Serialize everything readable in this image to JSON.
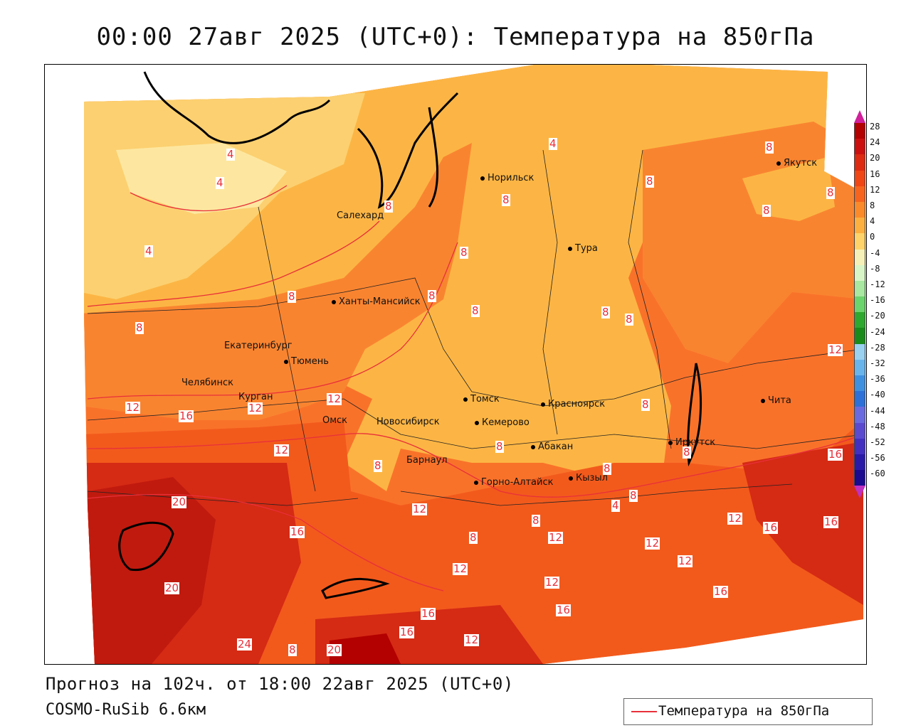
{
  "title": "00:00 27авг 2025 (UTC+0): Температура на 850гПа",
  "footer": {
    "forecast": "Прогноз на 102ч. от 18:00 22авг 2025 (UTC+0)",
    "model": "COSMO-RuSib 6.6км"
  },
  "legend": {
    "label": "Температура на 850гПа",
    "color": "#e8303a"
  },
  "colorbar": {
    "labels": [
      "28",
      "24",
      "20",
      "16",
      "12",
      "8",
      "4",
      "0",
      "-4",
      "-8",
      "-12",
      "-16",
      "-20",
      "-24",
      "-28",
      "-32",
      "-36",
      "-40",
      "-44",
      "-48",
      "-52",
      "-56",
      "-60"
    ],
    "colors": [
      "#b30000",
      "#cc1010",
      "#dd2a10",
      "#f04515",
      "#f7641e",
      "#fb8a2a",
      "#fcb040",
      "#fdd36a",
      "#f5f0b8",
      "#d8f5c8",
      "#a8e8a0",
      "#6cd46c",
      "#2ea82e",
      "#1a8a1a",
      "#9ad0f0",
      "#6ab4ec",
      "#4090e0",
      "#2c70d8",
      "#6a6ae0",
      "#5a4ad0",
      "#4230c0",
      "#2a1aa8",
      "#1a0a90"
    ]
  },
  "cities": [
    {
      "name": "Норильск"
    },
    {
      "name": "Якутск"
    },
    {
      "name": "Салехард"
    },
    {
      "name": "Тура"
    },
    {
      "name": "Ханты-Мансийск"
    },
    {
      "name": "Екатеринбург"
    },
    {
      "name": "Тюмень"
    },
    {
      "name": "Челябинск"
    },
    {
      "name": "Курган"
    },
    {
      "name": "Омск"
    },
    {
      "name": "Новосибирск"
    },
    {
      "name": "Томск"
    },
    {
      "name": "Кемерово"
    },
    {
      "name": "Красноярск"
    },
    {
      "name": "Абакан"
    },
    {
      "name": "Барнаул"
    },
    {
      "name": "Горно-Алтайск"
    },
    {
      "name": "Кызыл"
    },
    {
      "name": "Иркутск"
    },
    {
      "name": "Чита"
    }
  ],
  "isotherm_labels": [
    "4",
    "4",
    "4",
    "4",
    "8",
    "8",
    "8",
    "8",
    "8",
    "8",
    "8",
    "8",
    "8",
    "8",
    "8",
    "8",
    "8",
    "8",
    "8",
    "8",
    "8",
    "8",
    "8",
    "8",
    "8",
    "12",
    "12",
    "12",
    "12",
    "12",
    "12",
    "12",
    "12",
    "12",
    "12",
    "12",
    "12",
    "12",
    "16",
    "16",
    "16",
    "16",
    "16",
    "16",
    "16",
    "16",
    "16",
    "20",
    "20",
    "20",
    "24",
    "4",
    "8"
  ]
}
